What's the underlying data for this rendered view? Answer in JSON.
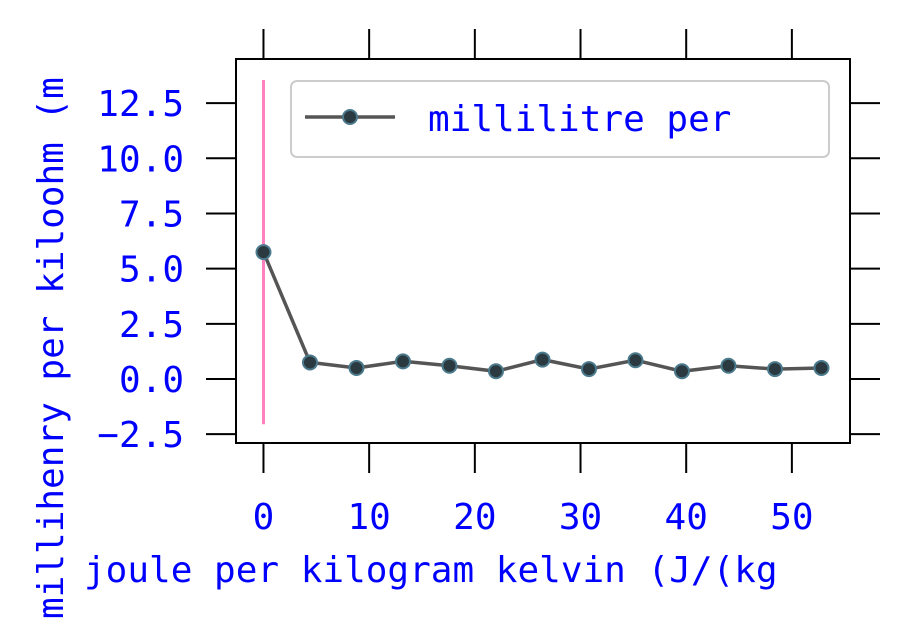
{
  "chart_data": {
    "type": "line",
    "xlabel": "joule per kilogram kelvin (J/(kg",
    "ylabel": "millihenry per kiloohm (m",
    "xlim": [
      -2.6,
      55.5
    ],
    "ylim": [
      -2.9,
      14.5
    ],
    "x_ticks": [
      0,
      10,
      20,
      30,
      40,
      50
    ],
    "x_tick_labels": [
      "0",
      "10",
      "20",
      "30",
      "40",
      "50"
    ],
    "y_ticks": [
      -2.5,
      0,
      2.5,
      5,
      7.5,
      10,
      12.5
    ],
    "y_tick_labels": [
      "−2.5",
      "0.0",
      "2.5",
      "5.0",
      "7.5",
      "10.0",
      "12.5"
    ],
    "ticks_on_all_sides": true,
    "grid": false,
    "legend_position": "top-right",
    "series": [
      {
        "name": "millilitre per",
        "x": [
          0.0,
          4.4,
          8.8,
          13.2,
          17.6,
          22.0,
          26.4,
          30.8,
          35.2,
          39.6,
          44.0,
          48.4,
          52.8
        ],
        "y": [
          5.75,
          0.75,
          0.5,
          0.8,
          0.6,
          0.35,
          0.88,
          0.45,
          0.85,
          0.35,
          0.6,
          0.45,
          0.5
        ],
        "y_error": [
          7.8,
          0.35,
          0.2,
          0.2,
          0.25,
          0.2,
          0.2,
          0.25,
          0.2,
          0.25,
          0.2,
          0.2,
          0.2
        ]
      }
    ],
    "colors": {
      "line": "#555555",
      "marker_fill": "#2b3a40",
      "marker_edge": "#4a7a8c",
      "error_bar": "#ff7fbf",
      "text": "#0000ff",
      "axes": "#000000",
      "background": "#ffffff",
      "legend_border": "#cccccc"
    }
  }
}
